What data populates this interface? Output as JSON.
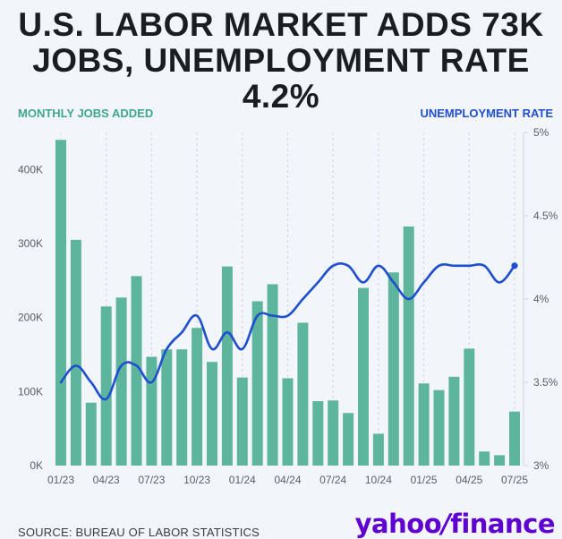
{
  "header": {
    "title_line1": "U.S. LABOR MARKET ADDS 73K",
    "title_line2": "JOBS, UNEMPLOYMENT RATE 4.2%",
    "left_axis_label": "MONTHLY JOBS ADDED",
    "right_axis_label": "UNEMPLOYMENT RATE"
  },
  "footer": {
    "source": "SOURCE: BUREAU OF LABOR STATISTICS",
    "logo_part1": "yahoo",
    "logo_slash": "/",
    "logo_part2": "finance"
  },
  "colors": {
    "bar": "#5db59b",
    "line": "#1f4fd1",
    "grid": "#cfd6de",
    "text": "#5a5f66"
  },
  "chart_data": {
    "type": "bar+line",
    "categories": [
      "01/23",
      "02/23",
      "03/23",
      "04/23",
      "05/23",
      "06/23",
      "07/23",
      "08/23",
      "09/23",
      "10/23",
      "11/23",
      "12/23",
      "01/24",
      "02/24",
      "03/24",
      "04/24",
      "05/24",
      "06/24",
      "07/24",
      "08/24",
      "09/24",
      "10/24",
      "11/24",
      "12/24",
      "01/25",
      "02/25",
      "03/25",
      "04/25",
      "05/25",
      "06/25",
      "07/25"
    ],
    "x_tick_labels": [
      "01/23",
      "04/23",
      "07/23",
      "10/23",
      "01/24",
      "04/24",
      "07/24",
      "10/24",
      "01/25",
      "04/25",
      "07/25"
    ],
    "series": [
      {
        "name": "MONTHLY JOBS ADDED",
        "type": "bar",
        "axis": "left",
        "values": [
          440000,
          305000,
          85000,
          215000,
          227000,
          256000,
          147000,
          157000,
          157000,
          186000,
          140000,
          269000,
          119000,
          222000,
          245000,
          118000,
          193000,
          87000,
          88000,
          71000,
          240000,
          43000,
          261000,
          323000,
          111000,
          102000,
          120000,
          158000,
          19000,
          14000,
          73000
        ]
      },
      {
        "name": "UNEMPLOYMENT RATE",
        "type": "line",
        "axis": "right",
        "values": [
          3.5,
          3.6,
          3.5,
          3.4,
          3.6,
          3.6,
          3.5,
          3.7,
          3.8,
          3.9,
          3.7,
          3.8,
          3.7,
          3.9,
          3.9,
          3.9,
          4.0,
          4.1,
          4.2,
          4.2,
          4.1,
          4.2,
          4.1,
          4.0,
          4.1,
          4.2,
          4.2,
          4.2,
          4.2,
          4.1,
          4.2
        ]
      }
    ],
    "y_left": {
      "ylim": [
        0,
        450000
      ],
      "ticks": [
        0,
        100000,
        200000,
        300000,
        400000
      ],
      "tick_labels": [
        "0K",
        "100K",
        "200K",
        "300K",
        "400K"
      ]
    },
    "y_right": {
      "ylim": [
        3,
        5
      ],
      "ticks": [
        3,
        3.5,
        4,
        4.5,
        5
      ],
      "tick_labels": [
        "3%",
        "3.5%",
        "4%",
        "4.5%",
        "5%"
      ]
    },
    "grid": "vertical dashed"
  }
}
